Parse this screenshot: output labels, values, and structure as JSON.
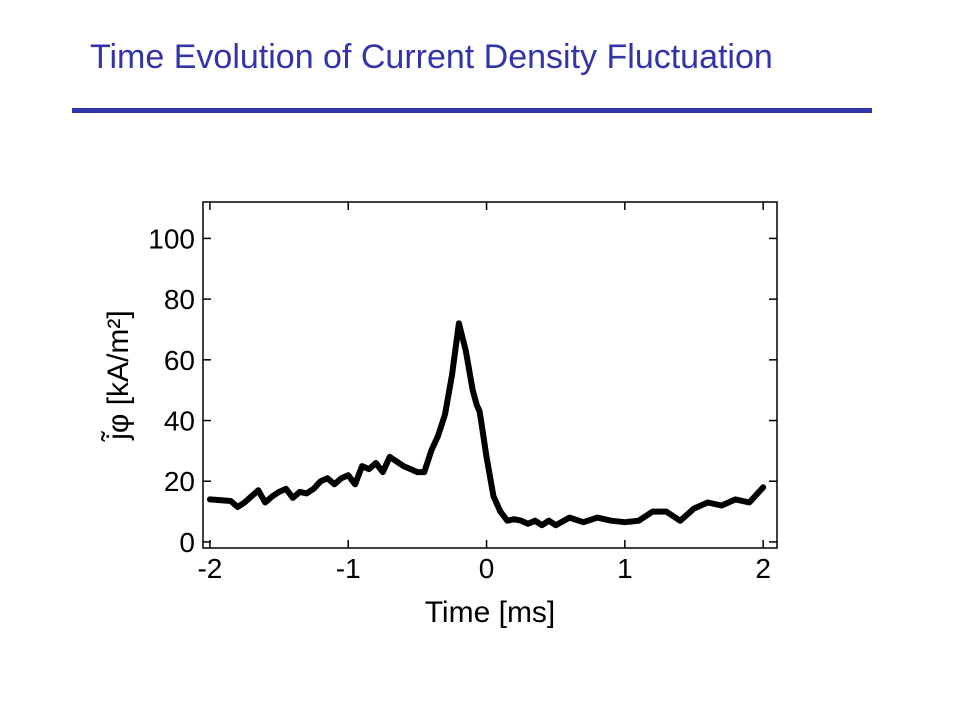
{
  "slide": {
    "title": "Time Evolution of Current Density Fluctuation"
  },
  "chart_data": {
    "type": "line",
    "title": "",
    "xlabel": "Time [ms]",
    "ylabel": "j̃φ [kA/m²]",
    "xlim": [
      -2.05,
      2.1
    ],
    "ylim": [
      -2,
      112
    ],
    "xticks": [
      -2,
      -1,
      0,
      1,
      2
    ],
    "xtick_labels": [
      "-2",
      "-1",
      "0",
      "1",
      "2"
    ],
    "yticks": [
      0,
      20,
      40,
      60,
      80,
      100
    ],
    "ytick_labels": [
      "0",
      "20",
      "40",
      "60",
      "80",
      "100"
    ],
    "grid": false,
    "line_color": "#000000",
    "series": [
      {
        "x": [
          -2.0,
          -1.85,
          -1.8,
          -1.75,
          -1.7,
          -1.65,
          -1.6,
          -1.55,
          -1.5,
          -1.45,
          -1.4,
          -1.35,
          -1.3,
          -1.25,
          -1.2,
          -1.15,
          -1.1,
          -1.05,
          -1.0,
          -0.95,
          -0.9,
          -0.85,
          -0.8,
          -0.75,
          -0.7,
          -0.65,
          -0.6,
          -0.55,
          -0.5,
          -0.45,
          -0.4,
          -0.35,
          -0.3,
          -0.25,
          -0.2,
          -0.15,
          -0.1,
          -0.07,
          -0.05,
          -0.03,
          0.0,
          0.05,
          0.1,
          0.15,
          0.2,
          0.25,
          0.3,
          0.35,
          0.4,
          0.45,
          0.5,
          0.6,
          0.7,
          0.8,
          0.9,
          1.0,
          1.1,
          1.2,
          1.3,
          1.4,
          1.5,
          1.6,
          1.7,
          1.8,
          1.9,
          2.0
        ],
        "y": [
          14,
          13.5,
          11.5,
          13,
          15,
          17,
          13,
          15,
          16.5,
          17.5,
          14.5,
          16.5,
          16,
          17.5,
          20,
          21,
          19,
          21,
          22,
          19,
          25,
          24,
          26,
          23,
          28,
          26.5,
          25,
          24,
          23,
          23,
          30,
          35,
          42,
          55,
          72,
          63,
          50,
          45,
          43,
          37,
          28,
          15,
          10,
          7,
          7.5,
          7,
          6,
          7,
          5.5,
          7,
          5.5,
          8,
          6.5,
          8,
          7,
          6.5,
          7,
          10,
          10,
          7,
          11,
          13,
          12,
          14,
          13,
          18
        ]
      }
    ]
  }
}
